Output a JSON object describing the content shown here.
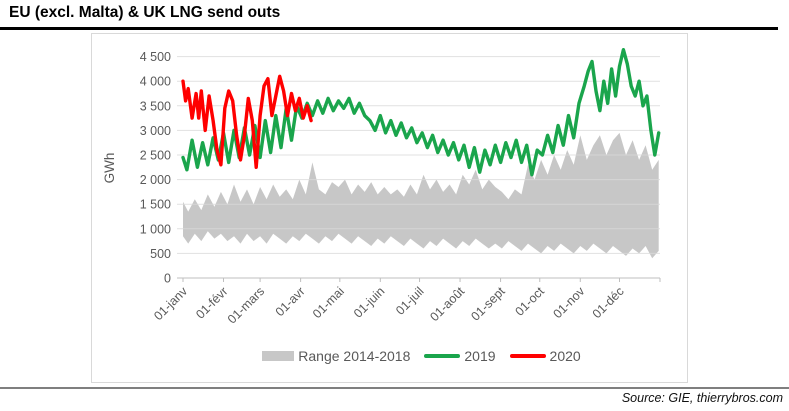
{
  "title": "EU (excl. Malta) & UK LNG send outs",
  "source": "Source: GIE, thierrybros.com",
  "ylabel": "GWh",
  "colors": {
    "band": "#C7C7C7",
    "s2019": "#1AA54C",
    "s2020": "#FF0000",
    "grid": "#DADADA",
    "axis": "#BFBFBF",
    "label": "#595959",
    "frame": "#D9D9D9",
    "title_rule": "#000000",
    "bottom_rule": "#7F7F7F"
  },
  "legend": [
    {
      "label": "Range 2014-2018",
      "type": "band",
      "colorKey": "band"
    },
    {
      "label": "2019",
      "type": "line",
      "colorKey": "s2019"
    },
    {
      "label": "2020",
      "type": "line",
      "colorKey": "s2020"
    }
  ],
  "chart_data": {
    "type": "line",
    "title": "EU (excl. Malta) & UK LNG send outs",
    "xlabel": "",
    "ylabel": "GWh",
    "ylim": [
      0,
      4500
    ],
    "grid": true,
    "legend_position": "bottom",
    "ytick_values": [
      0,
      500,
      1000,
      1500,
      2000,
      2500,
      3000,
      3500,
      4000,
      4500
    ],
    "ytick_labels": [
      "0",
      "500",
      "1 000",
      "1 500",
      "2 000",
      "2 500",
      "3 000",
      "3 500",
      "4 000",
      "4 500"
    ],
    "xticks": [
      {
        "label": "01-janv",
        "day": 1
      },
      {
        "label": "01-févr",
        "day": 32
      },
      {
        "label": "01-mars",
        "day": 60
      },
      {
        "label": "01-avr",
        "day": 91
      },
      {
        "label": "01-mai",
        "day": 121
      },
      {
        "label": "01-juin",
        "day": 152
      },
      {
        "label": "01-juil",
        "day": 182
      },
      {
        "label": "01-août",
        "day": 213
      },
      {
        "label": "01-sept",
        "day": 244
      },
      {
        "label": "01-oct",
        "day": 274
      },
      {
        "label": "01-nov",
        "day": 305
      },
      {
        "label": "01-déc",
        "day": 335
      }
    ],
    "x_end_tick_day": 366,
    "series": [
      {
        "name": "Range 2014-2018",
        "type": "band",
        "colorKey": "band",
        "days": [
          1,
          5,
          10,
          15,
          20,
          25,
          30,
          35,
          40,
          45,
          50,
          55,
          60,
          65,
          70,
          75,
          80,
          85,
          90,
          95,
          100,
          105,
          110,
          115,
          120,
          125,
          130,
          135,
          140,
          145,
          150,
          155,
          160,
          165,
          170,
          175,
          180,
          185,
          190,
          195,
          200,
          205,
          210,
          215,
          220,
          225,
          230,
          235,
          240,
          245,
          250,
          255,
          260,
          265,
          270,
          275,
          280,
          285,
          290,
          295,
          300,
          305,
          310,
          315,
          320,
          325,
          330,
          335,
          340,
          345,
          350,
          355,
          360,
          365
        ],
        "upper": [
          1550,
          1350,
          1600,
          1380,
          1700,
          1450,
          1750,
          1500,
          1900,
          1550,
          1800,
          1500,
          1850,
          1600,
          1900,
          1650,
          1800,
          1600,
          2000,
          1700,
          2350,
          1800,
          1700,
          1950,
          1850,
          2000,
          1700,
          1900,
          1750,
          1950,
          1700,
          1850,
          1700,
          1800,
          1650,
          1900,
          1700,
          2100,
          1800,
          2000,
          1750,
          1900,
          1700,
          2100,
          1900,
          2200,
          1800,
          2000,
          1850,
          1750,
          1600,
          1800,
          1700,
          2300,
          2000,
          2400,
          2100,
          2500,
          2200,
          2600,
          2300,
          2900,
          2400,
          2700,
          2900,
          2500,
          2800,
          2950,
          2500,
          2800,
          2400,
          2700,
          2200,
          2400
        ],
        "lower": [
          850,
          700,
          900,
          750,
          950,
          800,
          900,
          750,
          850,
          700,
          900,
          750,
          850,
          700,
          900,
          800,
          700,
          850,
          750,
          900,
          800,
          700,
          850,
          750,
          900,
          800,
          700,
          850,
          750,
          650,
          800,
          700,
          850,
          750,
          650,
          800,
          700,
          600,
          750,
          650,
          800,
          700,
          600,
          750,
          650,
          800,
          700,
          600,
          700,
          600,
          750,
          650,
          550,
          700,
          600,
          500,
          650,
          550,
          700,
          600,
          500,
          650,
          550,
          700,
          600,
          500,
          650,
          550,
          450,
          600,
          500,
          650,
          400,
          550
        ]
      },
      {
        "name": "2019",
        "type": "line",
        "colorKey": "s2019",
        "days": [
          1,
          4,
          8,
          12,
          16,
          20,
          24,
          28,
          32,
          36,
          40,
          44,
          48,
          52,
          56,
          60,
          64,
          68,
          72,
          76,
          80,
          84,
          88,
          92,
          96,
          100,
          104,
          108,
          112,
          116,
          120,
          124,
          128,
          132,
          136,
          140,
          144,
          148,
          152,
          156,
          160,
          164,
          168,
          172,
          176,
          180,
          184,
          188,
          192,
          196,
          200,
          204,
          208,
          212,
          216,
          220,
          224,
          228,
          232,
          236,
          240,
          244,
          248,
          252,
          256,
          260,
          264,
          268,
          272,
          276,
          280,
          284,
          288,
          292,
          296,
          300,
          304,
          308,
          311,
          314,
          317,
          320,
          323,
          326,
          329,
          332,
          335,
          338,
          341,
          344,
          347,
          350,
          353,
          356,
          359,
          362,
          365
        ],
        "values": [
          2450,
          2200,
          2800,
          2250,
          2750,
          2300,
          2850,
          2400,
          2950,
          2350,
          3000,
          2450,
          3050,
          2500,
          3100,
          2450,
          3200,
          2550,
          3300,
          2650,
          3450,
          2800,
          3500,
          3250,
          3550,
          3300,
          3600,
          3350,
          3650,
          3400,
          3600,
          3450,
          3650,
          3350,
          3550,
          3300,
          3200,
          3000,
          3300,
          2950,
          3200,
          2900,
          3150,
          2850,
          3050,
          2750,
          2950,
          2650,
          2900,
          2550,
          2800,
          2500,
          2750,
          2400,
          2700,
          2250,
          2650,
          2150,
          2600,
          2300,
          2700,
          2350,
          2750,
          2450,
          2800,
          2350,
          2700,
          2100,
          2600,
          2500,
          2900,
          2550,
          3100,
          2700,
          3300,
          2850,
          3550,
          3900,
          4200,
          4400,
          3800,
          3400,
          4000,
          3550,
          4250,
          3700,
          4300,
          4640,
          4350,
          3900,
          3700,
          4000,
          3500,
          3700,
          3000,
          2500,
          2950
        ]
      },
      {
        "name": "2020",
        "type": "line",
        "colorKey": "s2020",
        "days": [
          1,
          3,
          5,
          8,
          11,
          13,
          15,
          18,
          21,
          24,
          27,
          30,
          33,
          36,
          39,
          42,
          45,
          48,
          51,
          54,
          57,
          60,
          63,
          66,
          69,
          72,
          75,
          78,
          81,
          84,
          87,
          90,
          93,
          96,
          99
        ],
        "values": [
          4000,
          3600,
          3850,
          3250,
          3750,
          3250,
          3800,
          3000,
          3700,
          3200,
          2600,
          2300,
          3450,
          3800,
          3600,
          2900,
          2400,
          2900,
          3650,
          3200,
          2250,
          3300,
          3900,
          4050,
          3300,
          3700,
          4100,
          3800,
          3300,
          3750,
          3400,
          3650,
          3250,
          3500,
          3200
        ]
      }
    ]
  }
}
